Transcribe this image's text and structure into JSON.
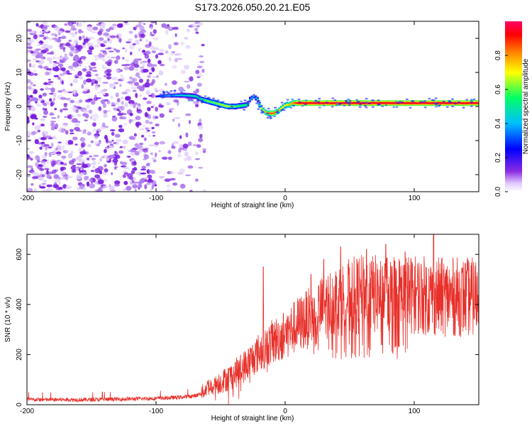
{
  "title": "S173.2026.050.20.21.E05",
  "colors": {
    "snr_line": "#e8302a",
    "noise": "#8a2be2",
    "colormap": [
      "#ffffff",
      "#8a2be2",
      "#0000ff",
      "#00bfff",
      "#00ff66",
      "#ffff00",
      "#ff8000",
      "#ff0000",
      "#ff0066"
    ]
  },
  "chart_data": [
    {
      "type": "heatmap",
      "name": "spectrogram",
      "xlabel": "Height of straight line (km)",
      "ylabel": "Frequency (Hz)",
      "xlim": [
        -200,
        150
      ],
      "ylim": [
        -25,
        25
      ],
      "xticks": [
        -200,
        -100,
        0,
        100
      ],
      "yticks": [
        -20,
        -10,
        0,
        10,
        20
      ],
      "noise_region": [
        -200,
        -70
      ],
      "ridge": {
        "x": [
          -100,
          -90,
          -80,
          -70,
          -65,
          -60,
          -55,
          -50,
          -45,
          -40,
          -35,
          -30,
          -28,
          -25,
          -22,
          -20,
          -18,
          -15,
          -12,
          -10,
          -7,
          -5,
          -2,
          0,
          2,
          5,
          8,
          10,
          20,
          40,
          60,
          80,
          100,
          120,
          150
        ],
        "y": [
          3,
          3.2,
          3.3,
          3,
          2,
          1.5,
          1,
          0.5,
          0,
          0,
          0.2,
          0.5,
          2,
          3,
          2,
          0,
          -1,
          -2,
          -2,
          -2,
          -1.5,
          -1,
          0,
          0.5,
          0.5,
          1,
          1,
          1,
          1,
          1,
          1,
          1,
          1,
          1,
          1
        ],
        "amplitude": [
          0.22,
          0.4,
          0.45,
          0.5,
          0.55,
          0.6,
          0.6,
          0.65,
          0.65,
          0.6,
          0.55,
          0.55,
          0.45,
          0.4,
          0.5,
          0.6,
          0.7,
          0.8,
          0.85,
          0.85,
          0.8,
          0.75,
          0.7,
          0.7,
          0.75,
          0.8,
          0.9,
          0.95,
          0.95,
          0.95,
          0.95,
          0.95,
          0.95,
          0.95,
          0.95
        ]
      },
      "colorbar": {
        "label": "Normalized spectral amplitude",
        "range": [
          0,
          1
        ],
        "ticks": [
          "0.0",
          "0.2",
          "0.4",
          "0.6",
          "0.8"
        ]
      }
    },
    {
      "type": "line",
      "name": "snr",
      "xlabel": "Height of straight line (km)",
      "ylabel": "SNR (10 * v/v)",
      "xlim": [
        -200,
        150
      ],
      "ylim": [
        0,
        680
      ],
      "xticks": [
        -200,
        -100,
        0,
        100
      ],
      "yticks": [
        0,
        200,
        400,
        600
      ],
      "series": [
        {
          "name": "SNR",
          "x": [
            -200,
            -150,
            -100,
            -80,
            -70,
            -65,
            -60,
            -50,
            -40,
            -30,
            -20,
            -10,
            0,
            10,
            20,
            30,
            40,
            50,
            60,
            80,
            100,
            120,
            150
          ],
          "y": [
            20,
            20,
            25,
            30,
            35,
            45,
            70,
            90,
            120,
            160,
            210,
            250,
            280,
            320,
            350,
            390,
            420,
            430,
            440,
            440,
            440,
            430,
            430
          ]
        }
      ],
      "spikes": {
        "x": [
          -17,
          20,
          30,
          43,
          63,
          78,
          93,
          115
        ],
        "y": [
          550,
          520,
          580,
          630,
          620,
          640,
          610,
          680
        ]
      }
    }
  ]
}
